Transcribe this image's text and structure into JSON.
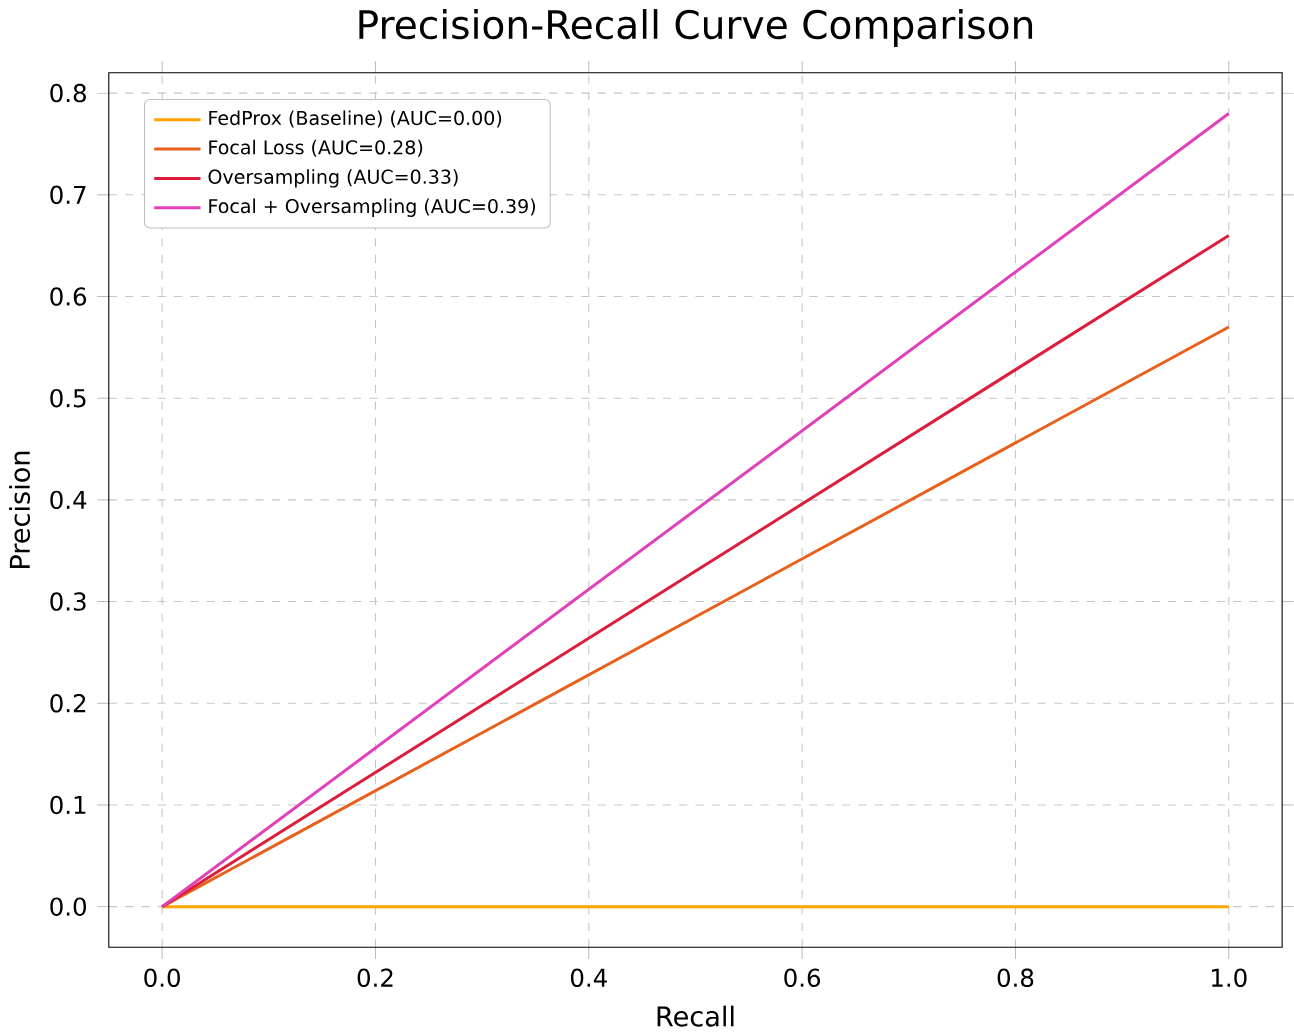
{
  "chart_data": {
    "type": "line",
    "title": "Precision-Recall Curve Comparison",
    "xlabel": "Recall",
    "ylabel": "Precision",
    "x": [
      0,
      1
    ],
    "series": [
      {
        "name": "FedProx (Baseline) (AUC=0.00)",
        "color": "#ffa500",
        "values": [
          0,
          0
        ]
      },
      {
        "name": "Focal Loss (AUC=0.28)",
        "color": "#e8601c",
        "values": [
          0,
          0.57
        ]
      },
      {
        "name": "Oversampling (AUC=0.33)",
        "color": "#dc1e3c",
        "values": [
          0,
          0.66
        ]
      },
      {
        "name": "Focal + Oversampling (AUC=0.39)",
        "color": "#e040b8",
        "values": [
          0,
          0.78
        ]
      }
    ],
    "xlim": [
      -0.05,
      1.05
    ],
    "ylim": [
      -0.04,
      0.82
    ],
    "xticks": [
      {
        "value": 0,
        "label": "0.0"
      },
      {
        "value": 0.2,
        "label": "0.2"
      },
      {
        "value": 0.4,
        "label": "0.4"
      },
      {
        "value": 0.6,
        "label": "0.6"
      },
      {
        "value": 0.8,
        "label": "0.8"
      },
      {
        "value": 1,
        "label": "1.0"
      }
    ],
    "yticks": [
      {
        "value": 0,
        "label": "0.0"
      },
      {
        "value": 0.1,
        "label": "0.1"
      },
      {
        "value": 0.2,
        "label": "0.2"
      },
      {
        "value": 0.3,
        "label": "0.3"
      },
      {
        "value": 0.4,
        "label": "0.4"
      },
      {
        "value": 0.5,
        "label": "0.5"
      },
      {
        "value": 0.6,
        "label": "0.6"
      },
      {
        "value": 0.7,
        "label": "0.7"
      },
      {
        "value": 0.8,
        "label": "0.8"
      }
    ],
    "grid": true,
    "legend": "top left",
    "marker": "none",
    "line_style": "solid"
  }
}
